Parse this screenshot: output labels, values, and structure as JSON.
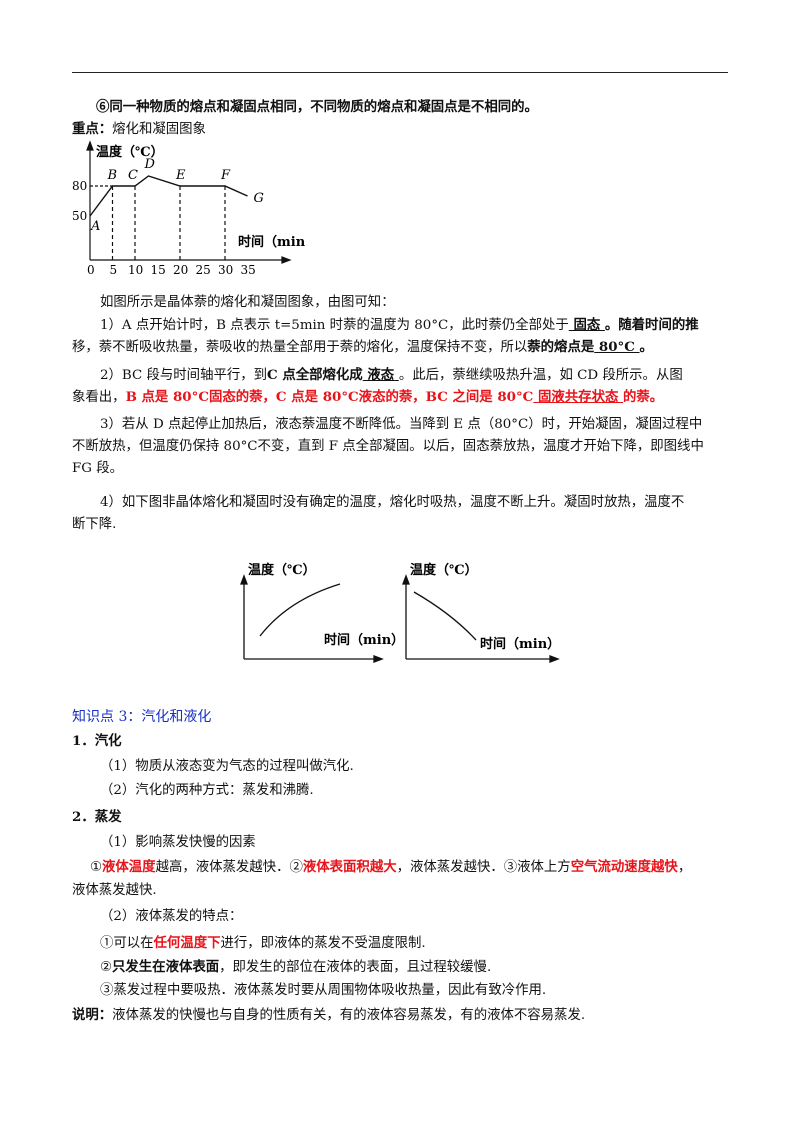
{
  "point6": "⑥同一种物质的熔点和凝固点相同，不同物质的熔点和凝固点是不相同的。",
  "focus": {
    "label": "重点：",
    "text": "熔化和凝固图象"
  },
  "chart_main": {
    "type": "line",
    "ylabel": "温度（℃）",
    "xlabel": "时间（min",
    "x_ticks": [
      "0",
      "5",
      "10",
      "15",
      "20",
      "25",
      "30",
      "35"
    ],
    "y_ticks": [
      "80",
      "50"
    ],
    "points": [
      {
        "label": "A",
        "x": 0,
        "y": 50
      },
      {
        "label": "B",
        "x": 5,
        "y": 80
      },
      {
        "label": "C",
        "x": 10,
        "y": 80
      },
      {
        "label": "D",
        "x": 13,
        "y": 90
      },
      {
        "label": "E",
        "x": 20,
        "y": 80
      },
      {
        "label": "F",
        "x": 30,
        "y": 80
      },
      {
        "label": "G",
        "x": 35,
        "y": 70
      }
    ]
  },
  "intro": "如图所示是晶体萘的熔化和凝固图象，由图可知：",
  "item1": {
    "l1a": "1）A 点开始计时，B 点表示 t=5min 时萘的温度为 80°C，此时萘仍全部处于",
    "blank1": " 固态 ",
    "l1b": "。随着时间的推",
    "l2a": "移，萘不断吸收热量，萘吸收的热量全部用于萘的熔化，温度保持不变，所以",
    "l2bold": "萘的熔点是",
    "blank2": " 80°C ",
    "l2end": "。"
  },
  "item2": {
    "l1a": "2）BC 段与时间轴平行，到",
    "l1bold": "C 点全部熔化成",
    "blank": " 液态 ",
    "l1b": "。此后，萘继续吸热升温，如 CD 段所示。从图",
    "l2a": "象看出，",
    "red1": "B 点是 80°C固态的萘，C 点是 80°C液态的萘，BC 之间是 80°C",
    "red_blank": " 固液共存状态 ",
    "red2": "的萘。"
  },
  "item3": {
    "l1": "3）若从 D 点起停止加热后，液态萘温度不断降低。当降到 E 点（80°C）时，开始凝固，凝固过程中",
    "l2": "不断放热，但温度仍保持 80°C不变，直到 F 点全部凝固。以后，固态萘放热，温度才开始下降，即图线中",
    "l3": "FG 段。"
  },
  "item4": {
    "l1": "4）如下图非晶体熔化和凝固时没有确定的温度，熔化时吸热，温度不断上升。凝固时放热，温度不",
    "l2": "断下降."
  },
  "chart_small": {
    "type": "line",
    "panels": [
      {
        "ylabel": "温度（℃）",
        "xlabel": "时间（min）",
        "trend": "rising"
      },
      {
        "ylabel": "温度（℃）",
        "xlabel": "时间（min）",
        "trend": "falling"
      }
    ]
  },
  "section3": {
    "title": "知识点 3：汽化和液化"
  },
  "s1": {
    "heading": "1．汽化",
    "p1": "（1）物质从液态变为气态的过程叫做汽化.",
    "p2": "（2）汽化的两种方式：蒸发和沸腾."
  },
  "s2": {
    "heading": "2．蒸发",
    "p1": "（1）影响蒸发快慢的因素",
    "f_a": "①",
    "f_r1": "液体温度",
    "f_b": "越高，液体蒸发越快．②",
    "f_r2": "液体表面积越大",
    "f_c": "，液体蒸发越快．③液体上方",
    "f_r3": "空气流动速度越快",
    "f_d": "，",
    "f_e": "液体蒸发越快.",
    "p2": "（2）液体蒸发的特点：",
    "c1a": "①可以在",
    "c1r": "任何温度下",
    "c1b": "进行，即液体的蒸发不受温度限制.",
    "c2a": "②",
    "c2bold": "只发生在液体表面",
    "c2b": "，即发生的部位在液体的表面，且过程较缓慢.",
    "c3": "③蒸发过程中要吸热．液体蒸发时要从周围物体吸收热量，因此有致冷作用."
  },
  "note": {
    "label": "说明：",
    "text": "液体蒸发的快慢也与自身的性质有关，有的液体容易蒸发，有的液体不容易蒸发."
  }
}
